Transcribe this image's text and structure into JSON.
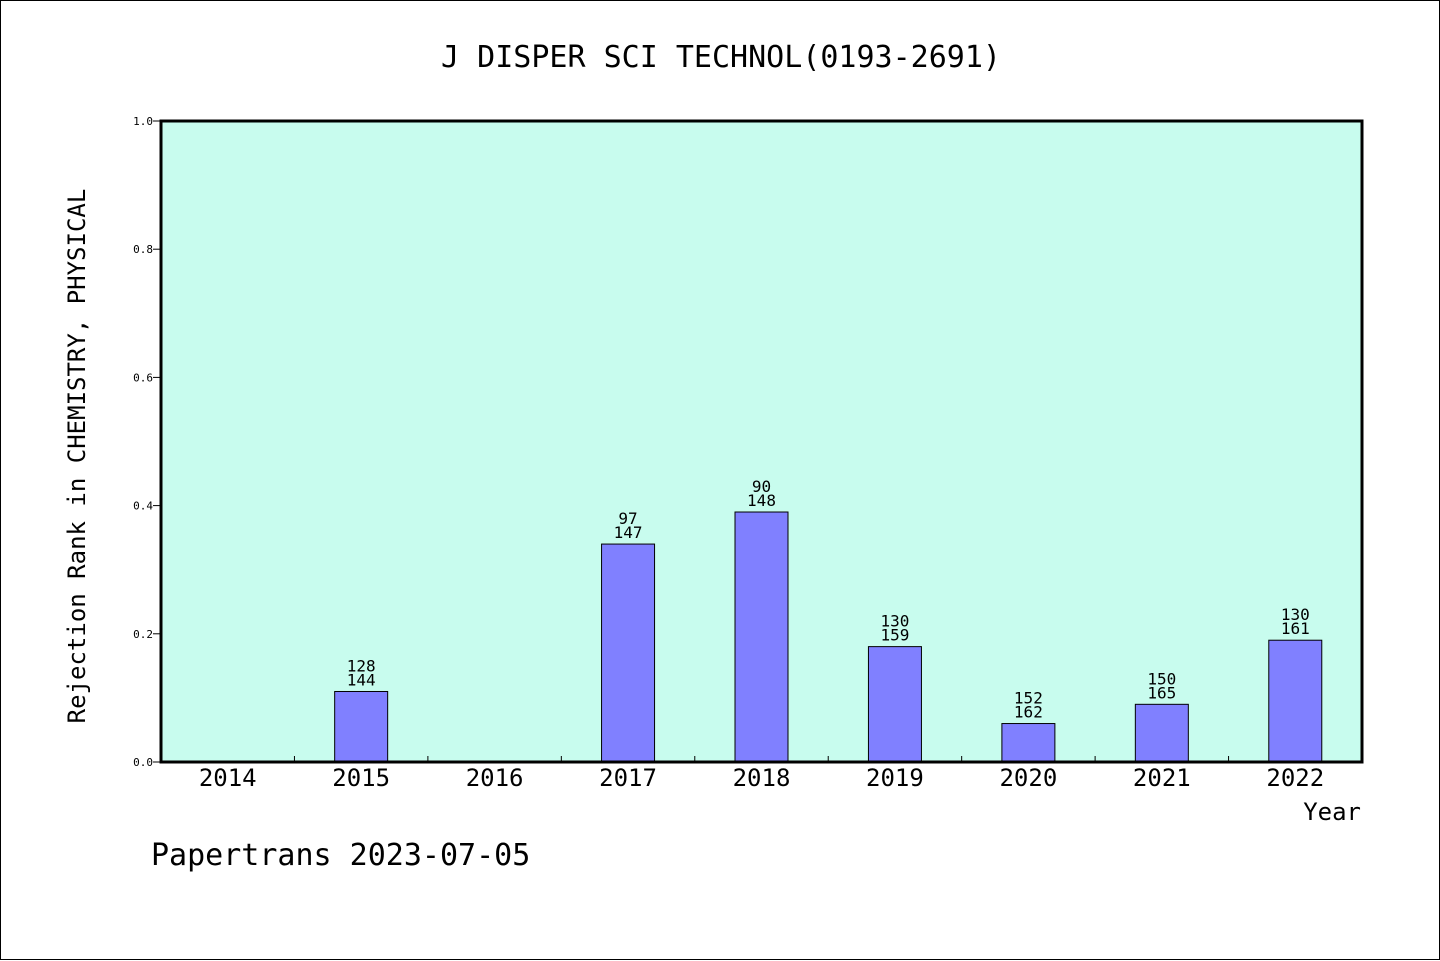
{
  "chart_data": {
    "type": "bar",
    "title": "J DISPER SCI TECHNOL(0193-2691)",
    "ylabel": "Rejection Rank in CHEMISTRY, PHYSICAL",
    "xlabel": "Year",
    "ylim": [
      0,
      1.0
    ],
    "yticks": [
      "0.0",
      "0.2",
      "0.4",
      "0.6",
      "0.8",
      "1.0"
    ],
    "categories": [
      "2014",
      "2015",
      "2016",
      "2017",
      "2018",
      "2019",
      "2020",
      "2021",
      "2022"
    ],
    "values": [
      null,
      0.11,
      null,
      0.34,
      0.39,
      0.18,
      0.06,
      0.09,
      0.19
    ],
    "label_top": [
      "",
      "128",
      "",
      "97",
      "90",
      "130",
      "152",
      "150",
      "130"
    ],
    "label_bottom": [
      "",
      "144",
      "",
      "147",
      "148",
      "159",
      "162",
      "165",
      "161"
    ],
    "colors": {
      "plot_background": "#c8fcee",
      "bar_fill": "#8080ff",
      "bar_stroke": "#000000"
    },
    "grid": false
  },
  "footer": {
    "text": "Papertrans 2023-07-05"
  }
}
